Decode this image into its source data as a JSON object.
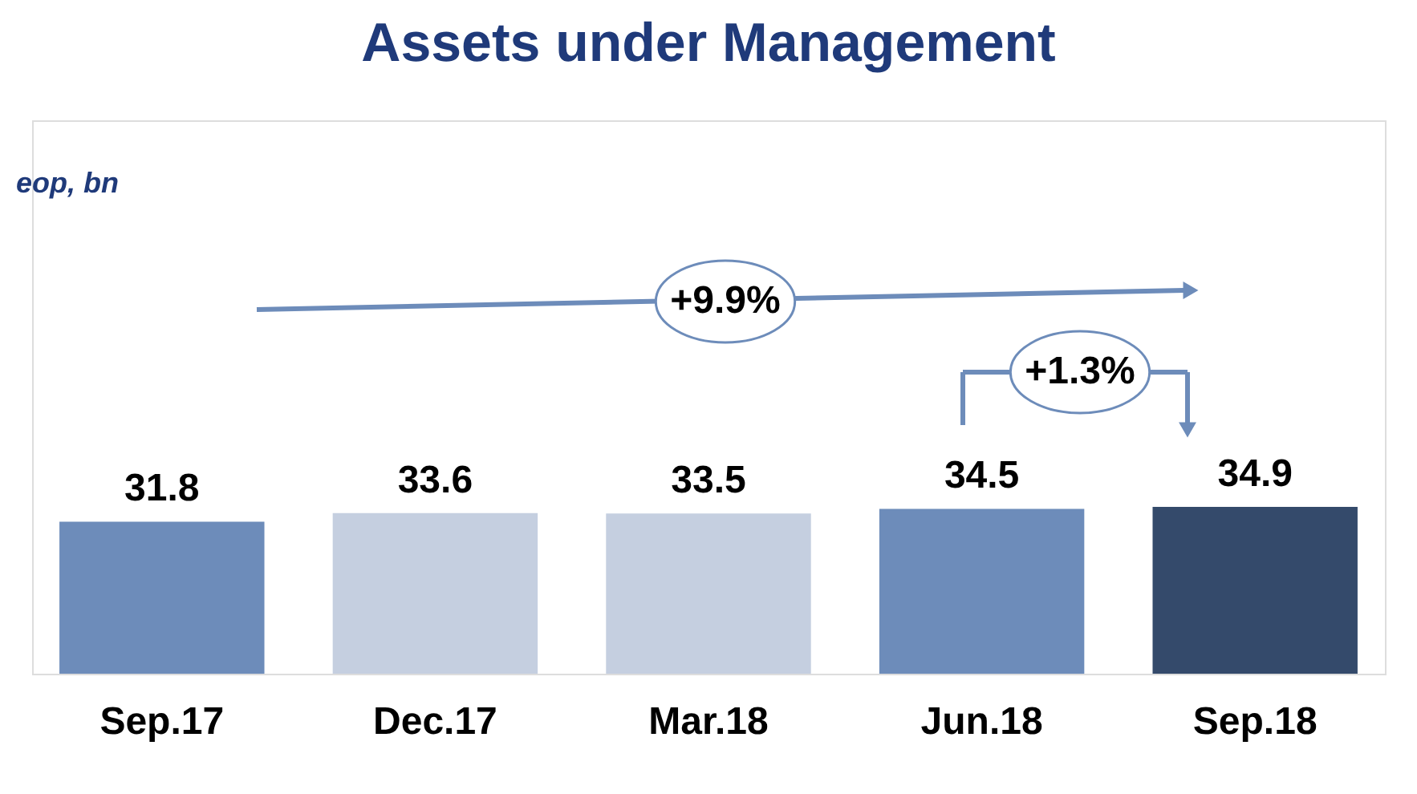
{
  "chart_data": {
    "type": "bar",
    "title": "Assets under Management",
    "categories": [
      "Sep.17",
      "Dec.17",
      "Mar.18",
      "Jun.18",
      "Sep.18"
    ],
    "values": [
      31.8,
      33.6,
      33.5,
      34.5,
      34.9
    ],
    "colors": [
      "#6d8cba",
      "#c5cfe0",
      "#c5cfe0",
      "#6d8cba",
      "#344a6b"
    ],
    "data_labels": true,
    "annotations": [
      "eop, bn",
      "+9.9%",
      "+1.3%"
    ]
  }
}
